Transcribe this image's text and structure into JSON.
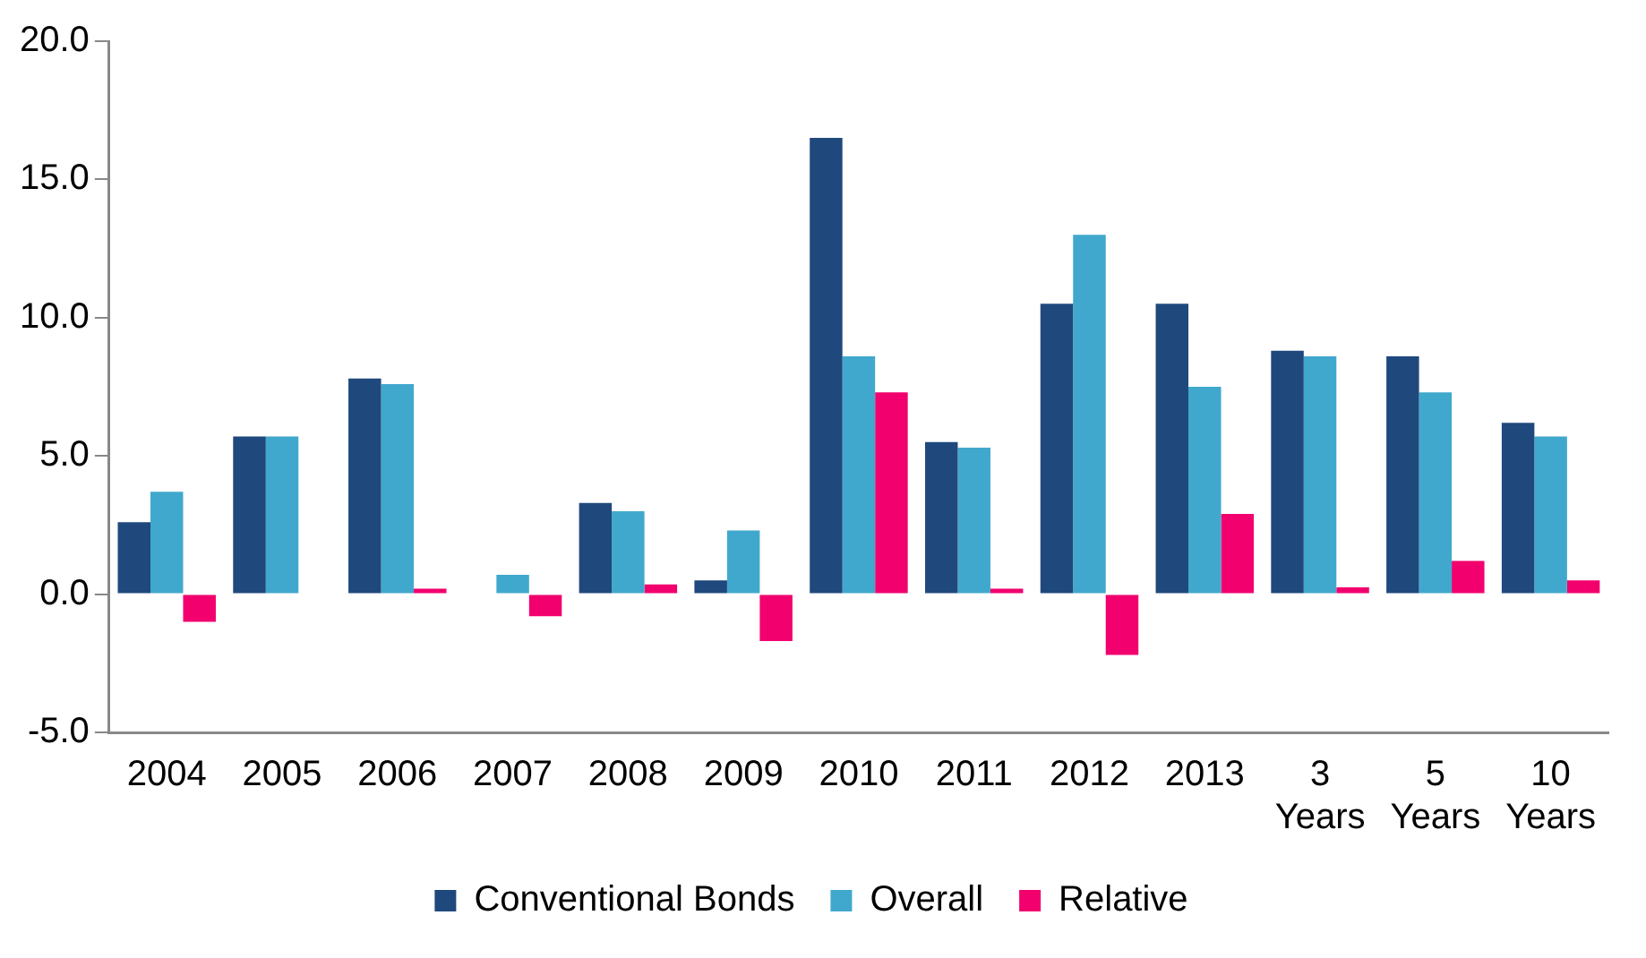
{
  "chart_data": {
    "type": "bar",
    "categories": [
      "2004",
      "2005",
      "2006",
      "2007",
      "2008",
      "2009",
      "2010",
      "2011",
      "2012",
      "2013",
      "3 Years",
      "5 Years",
      "10 Years"
    ],
    "series": [
      {
        "name": "Conventional Bonds",
        "color": "#1f497d",
        "values": [
          2.6,
          5.7,
          7.8,
          0,
          3.3,
          0.5,
          16.5,
          5.5,
          10.5,
          10.5,
          8.8,
          8.6,
          6.2
        ]
      },
      {
        "name": "Overall",
        "color": "#41a8cd",
        "values": [
          3.7,
          5.7,
          7.6,
          0.7,
          3.0,
          2.3,
          8.6,
          5.3,
          13.0,
          7.5,
          8.6,
          7.3,
          5.7
        ]
      },
      {
        "name": "Relative",
        "color": "#f2006e",
        "values": [
          -1.0,
          0,
          0.2,
          -0.8,
          0.35,
          -1.7,
          7.3,
          0.2,
          -2.2,
          2.9,
          0.25,
          1.2,
          0.5
        ]
      }
    ],
    "ylim": [
      -5,
      20
    ],
    "yticks": [
      {
        "value": -5,
        "label": "-5.0"
      },
      {
        "value": 0,
        "label": "0.0"
      },
      {
        "value": 5,
        "label": "5.0"
      },
      {
        "value": 10,
        "label": "10.0"
      },
      {
        "value": 15,
        "label": "15.0"
      },
      {
        "value": 20,
        "label": "20.0"
      }
    ],
    "grid": false,
    "legend": "bottom"
  }
}
